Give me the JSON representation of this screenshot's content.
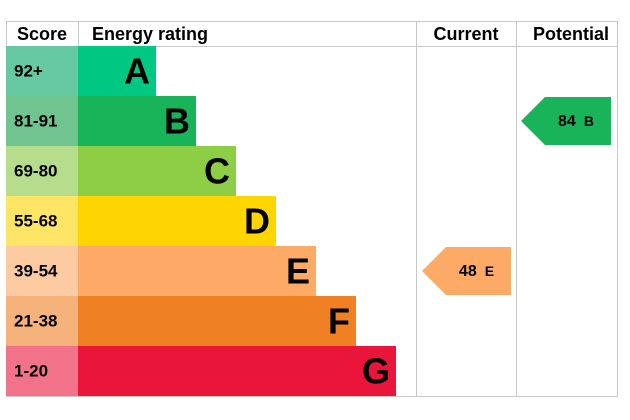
{
  "header": {
    "score": "Score",
    "rating": "Energy rating",
    "current": "Current",
    "potential": "Potential"
  },
  "bands": [
    {
      "score": "92+",
      "letter": "A",
      "color": "#00c781",
      "score_color": "#66c9a2"
    },
    {
      "score": "81-91",
      "letter": "B",
      "color": "#19b459",
      "score_color": "#6fc48f"
    },
    {
      "score": "69-80",
      "letter": "C",
      "color": "#8dce46",
      "score_color": "#b5dd8b"
    },
    {
      "score": "55-68",
      "letter": "D",
      "color": "#ffd500",
      "score_color": "#ffe566"
    },
    {
      "score": "39-54",
      "letter": "E",
      "color": "#fcaa65",
      "score_color": "#fdcba2"
    },
    {
      "score": "21-38",
      "letter": "F",
      "color": "#ef8023",
      "score_color": "#f5b27b"
    },
    {
      "score": "1-20",
      "letter": "G",
      "color": "#e9153b",
      "score_color": "#f27389"
    }
  ],
  "current": {
    "value": 48,
    "rating": "E",
    "color": "#fcaa65"
  },
  "potential": {
    "value": 84,
    "rating": "B",
    "color": "#19b459"
  }
}
